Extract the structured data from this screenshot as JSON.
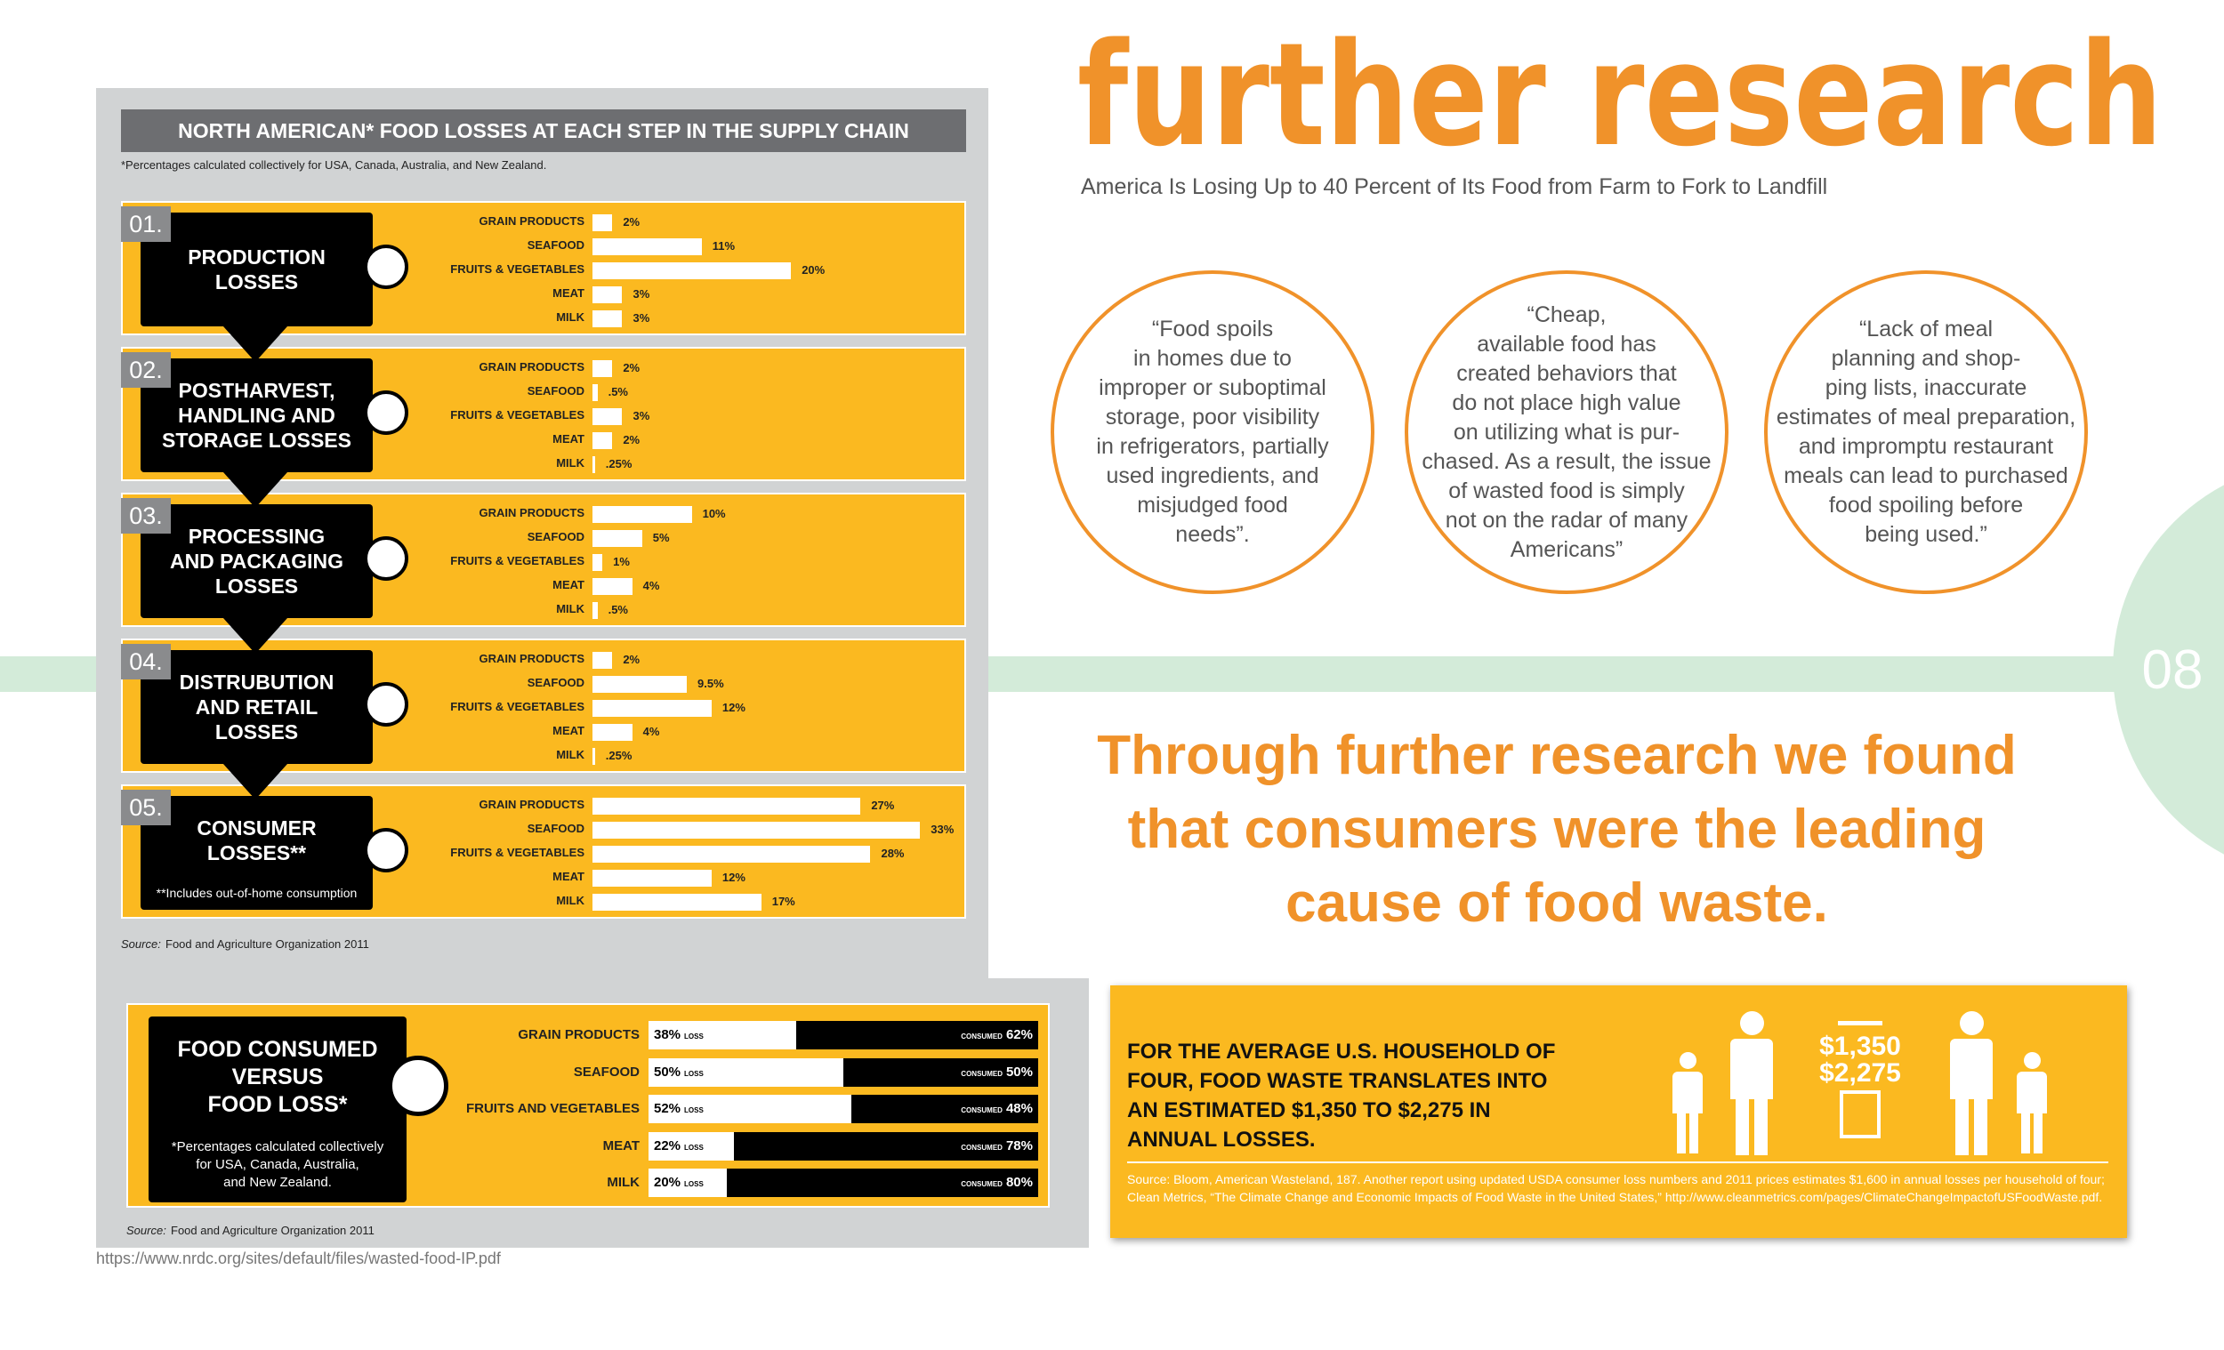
{
  "header": {
    "title": "further research",
    "subtitle": "America Is Losing Up to 40 Percent of Its Food from Farm to Fork to Landfill"
  },
  "quotes": [
    "“Food spoils\nin homes due to\nimproper or suboptimal\nstorage, poor visibility\nin refrigerators, partially\nused ingredients, and\nmisjudged food\nneeds”.",
    "“Cheap,\navailable food has\ncreated behaviors that\ndo not place high value\non utilizing what is pur-\nchased. As a result, the issue\nof wasted food is simply\nnot on the radar of many\nAmericans”",
    "“Lack of meal\nplanning and shop-\nping lists, inaccurate\nestimates of meal preparation,\nand impromptu restaurant\nmeals can lead to purchased\nfood spoiling before\nbeing used.”"
  ],
  "page_number": "08",
  "conclusion": "Through further research we found\nthat consumers were the leading\ncause of food waste.",
  "chart_data": [
    {
      "type": "bar",
      "orientation": "horizontal",
      "title": "NORTH AMERICAN* FOOD LOSSES AT EACH STEP IN THE SUPPLY CHAIN",
      "note": "*Percentages calculated collectively for USA, Canada, Australia, and New Zealand.",
      "categories": [
        "GRAIN PRODUCTS",
        "SEAFOOD",
        "FRUITS & VEGETABLES",
        "MEAT",
        "MILK"
      ],
      "color": "#ffffff",
      "series": [
        {
          "number": "01.",
          "name": "PRODUCTION\nLOSSES",
          "values": [
            2,
            11,
            20,
            3,
            3
          ],
          "value_labels": [
            "2%",
            "11%",
            "20%",
            "3%",
            "3%"
          ]
        },
        {
          "number": "02.",
          "name": "POSTHARVEST,\nHANDLING AND\nSTORAGE LOSSES",
          "values": [
            2,
            0.5,
            3,
            2,
            0.25
          ],
          "value_labels": [
            "2%",
            ".5%",
            "3%",
            "2%",
            ".25%"
          ]
        },
        {
          "number": "03.",
          "name": "PROCESSING\nAND PACKAGING\nLOSSES",
          "values": [
            10,
            5,
            1,
            4,
            0.5
          ],
          "value_labels": [
            "10%",
            "5%",
            "1%",
            "4%",
            ".5%"
          ]
        },
        {
          "number": "04.",
          "name": "DISTRUBUTION\nAND RETAIL\nLOSSES",
          "values": [
            2,
            9.5,
            12,
            4,
            0.25
          ],
          "value_labels": [
            "2%",
            "9.5%",
            "12%",
            "4%",
            ".25%"
          ]
        },
        {
          "number": "05.",
          "name": "CONSUMER\nLOSSES**",
          "footnote": "**Includes out-of-home consumption",
          "values": [
            27,
            33,
            28,
            12,
            17
          ],
          "value_labels": [
            "27%",
            "33%",
            "28%",
            "12%",
            "17%"
          ]
        }
      ],
      "source_prefix": "Source:",
      "source": "Food and Agriculture Organization 2011"
    },
    {
      "type": "stacked_bar",
      "orientation": "horizontal",
      "title": "FOOD CONSUMED\nVERSUS\nFOOD LOSS*",
      "note": "*Percentages calculated collectively\nfor USA, Canada, Australia,\nand New Zealand.",
      "categories": [
        "GRAIN PRODUCTS",
        "SEAFOOD",
        "FRUITS AND VEGETABLES",
        "MEAT",
        "MILK"
      ],
      "series": [
        {
          "name": "LOSS",
          "color": "#ffffff",
          "values": [
            38,
            50,
            52,
            22,
            20
          ],
          "value_labels": [
            "38%",
            "50%",
            "52%",
            "22%",
            "20%"
          ]
        },
        {
          "name": "CONSUMED",
          "color": "#000000",
          "values": [
            62,
            50,
            48,
            78,
            80
          ],
          "value_labels": [
            "62%",
            "50%",
            "48%",
            "78%",
            "80%"
          ]
        }
      ],
      "source_prefix": "Source:",
      "source": "Food and Agriculture Organization 2011"
    }
  ],
  "household": {
    "text": "FOR THE AVERAGE U.S. HOUSEHOLD OF\nFOUR, FOOD WASTE TRANSLATES INTO\nAN ESTIMATED $1,350 TO $2,275 IN\nANNUAL LOSSES.",
    "amounts": [
      "$1,350",
      "$2,275"
    ],
    "source": "Source: Bloom, American Wasteland, 187. Another report using updated USDA consumer loss numbers and 2011 prices estimates $1,600 in annual losses per household of four; Clean Metrics, “The Climate Change and Economic Impacts of Food Waste in the United States,” http://www.cleanmetrics.com/pages/ClimateChangeImpactofUSFoodWaste.pdf."
  },
  "url": "https://www.nrdc.org/sites/default/files/wasted-food-IP.pdf"
}
